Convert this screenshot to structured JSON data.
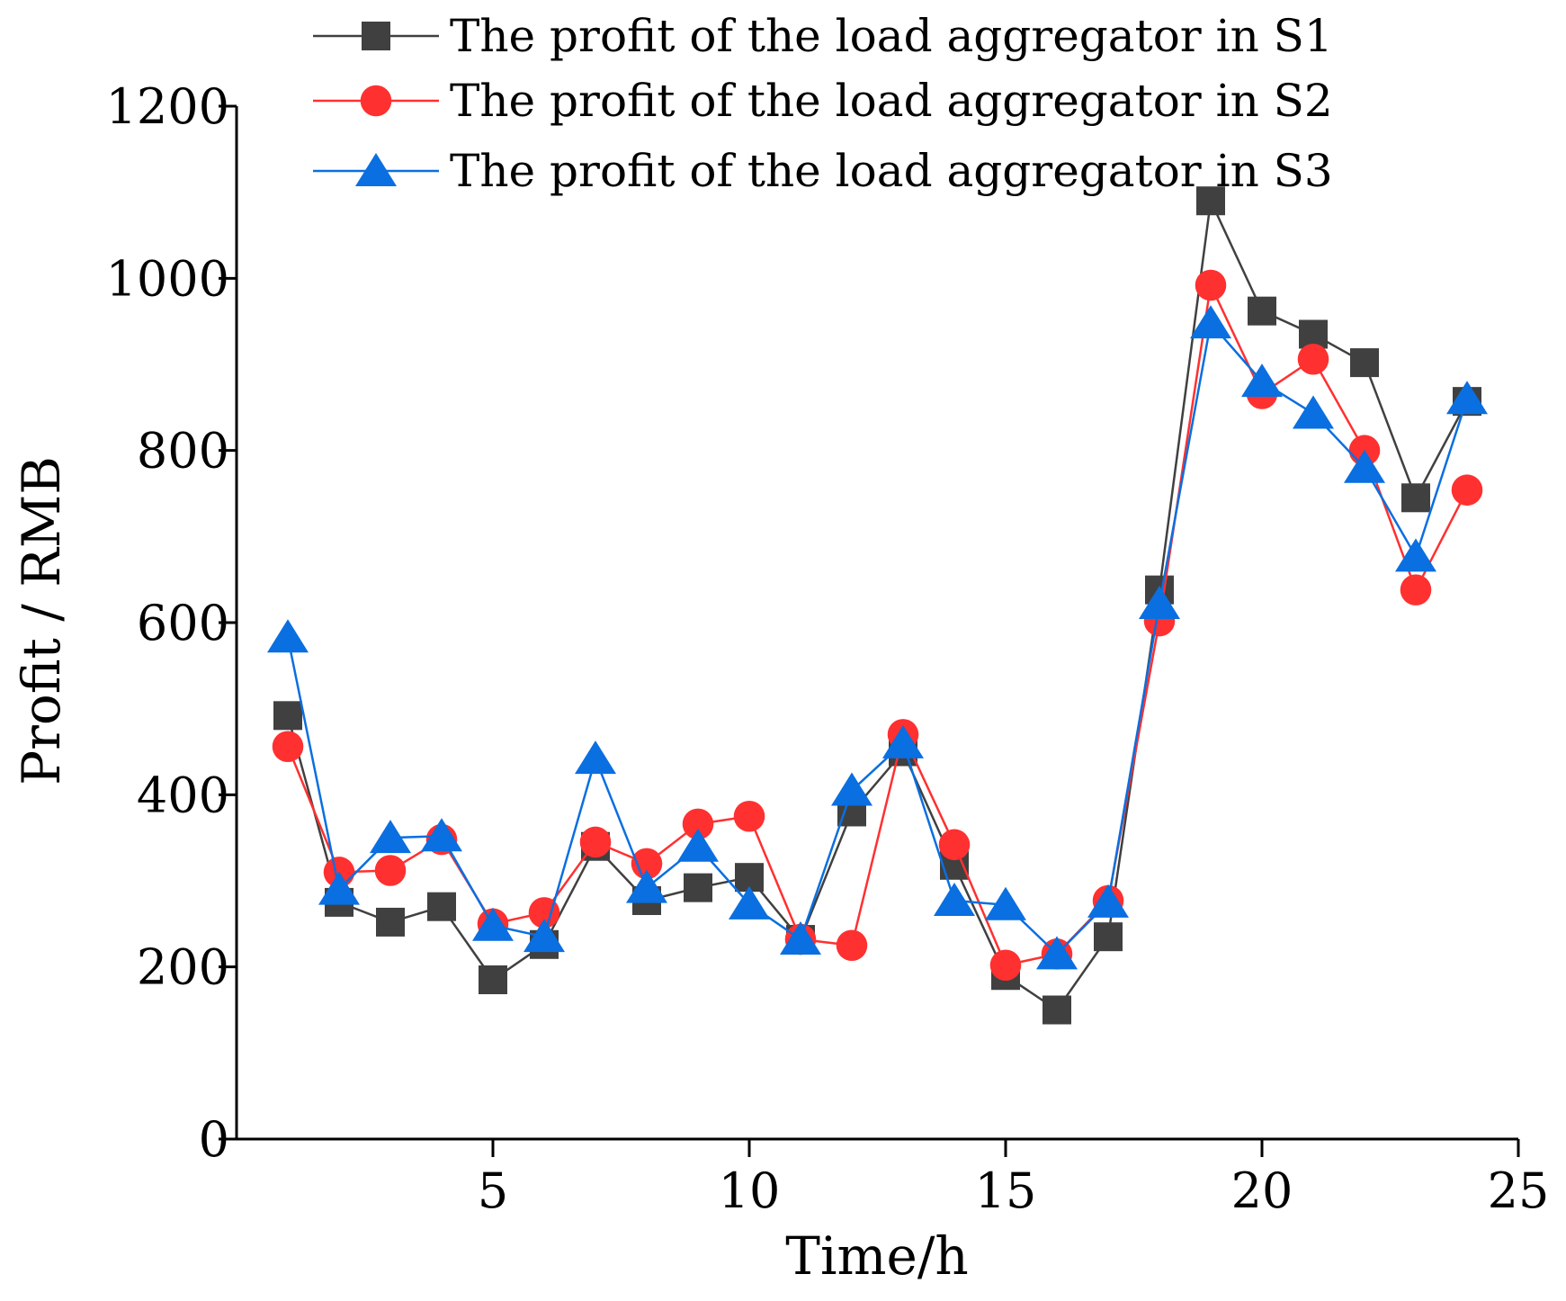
{
  "chart_data": {
    "type": "line",
    "title": "",
    "xlabel": "Time/h",
    "ylabel": "Profit / RMB",
    "xlim": [
      0,
      25
    ],
    "ylim": [
      0,
      1200
    ],
    "xticks": [
      5,
      10,
      15,
      20,
      25
    ],
    "yticks": [
      0,
      200,
      400,
      600,
      800,
      1000,
      1200
    ],
    "grid": false,
    "legend_position": "top",
    "x": [
      1,
      2,
      3,
      4,
      5,
      6,
      7,
      8,
      9,
      10,
      11,
      12,
      13,
      14,
      15,
      16,
      17,
      18,
      19,
      20,
      21,
      22,
      23,
      24
    ],
    "series": [
      {
        "name": "The profit of the load aggregator in S1",
        "color": "#404040",
        "marker": "square",
        "values": [
          492,
          275,
          252,
          270,
          185,
          226,
          340,
          277,
          292,
          304,
          232,
          380,
          450,
          318,
          190,
          150,
          235,
          638,
          1090,
          962,
          935,
          902,
          745,
          857
        ]
      },
      {
        "name": "The profit of the load aggregator in S2",
        "color": "#ff3030",
        "marker": "circle",
        "values": [
          456,
          310,
          312,
          348,
          250,
          263,
          345,
          320,
          366,
          375,
          232,
          225,
          470,
          342,
          202,
          215,
          277,
          602,
          992,
          866,
          906,
          800,
          638,
          754
        ]
      },
      {
        "name": "The profit of the load aggregator in S3",
        "color": "#0a6fe0",
        "marker": "triangle",
        "values": [
          583,
          290,
          350,
          352,
          248,
          235,
          442,
          292,
          340,
          273,
          232,
          405,
          460,
          277,
          272,
          215,
          275,
          622,
          948,
          880,
          843,
          780,
          677,
          860
        ]
      }
    ]
  }
}
